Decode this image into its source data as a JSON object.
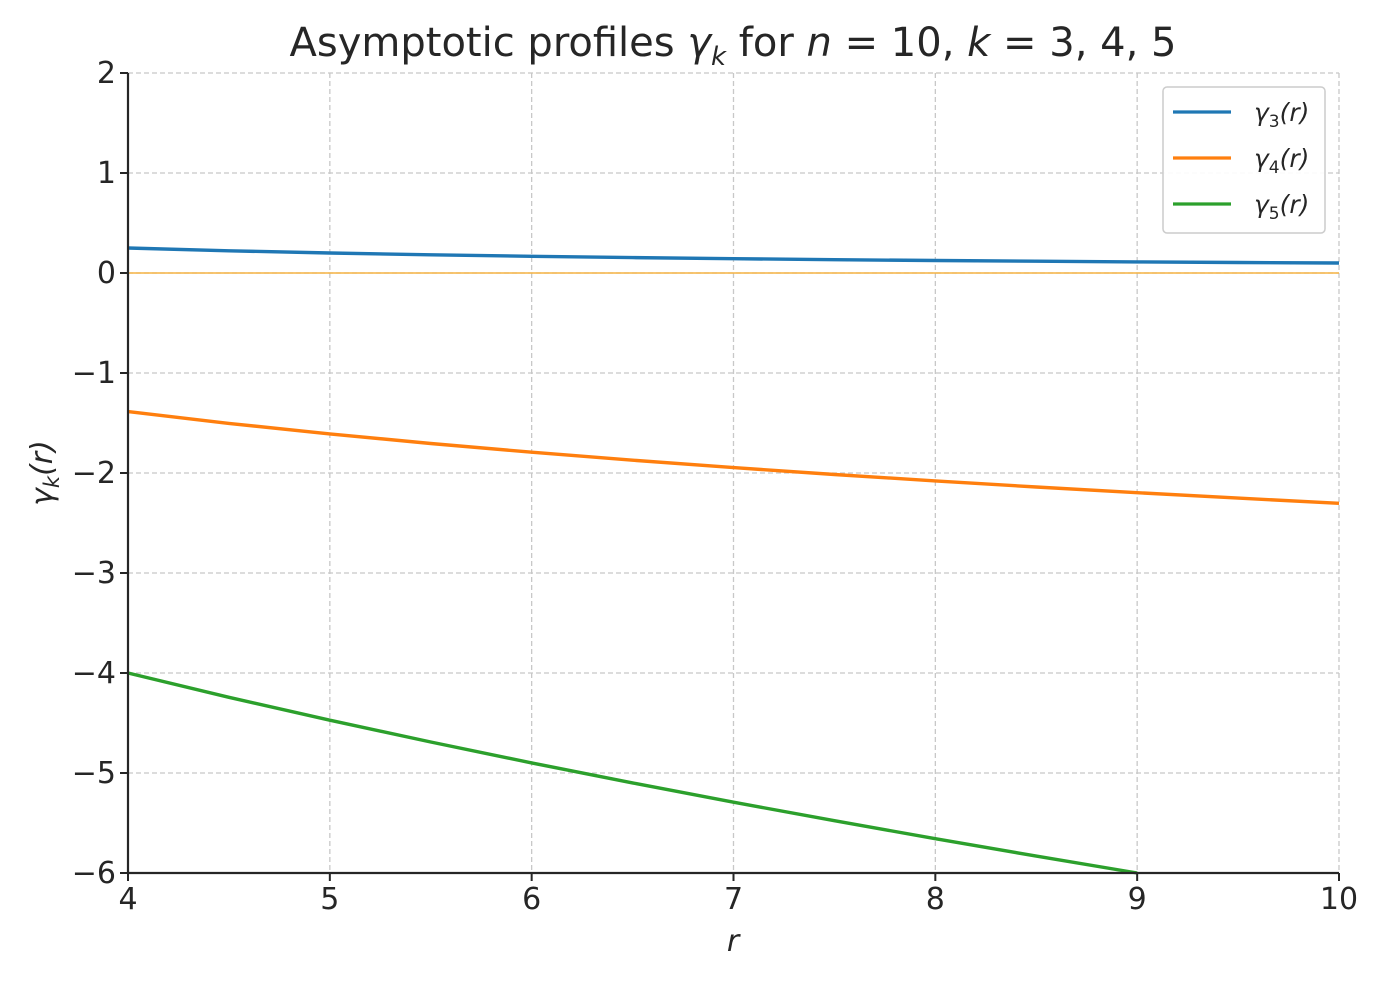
{
  "chart_data": {
    "type": "line",
    "title": {
      "prefix": "Asymptotic profiles ",
      "gamma": "γ",
      "gamma_sub": "k",
      "for": " for ",
      "n_var": "n",
      "n_eq": " = 10, ",
      "k_var": "k",
      "k_eq": " = 3, 4, 5"
    },
    "xlabel": "r",
    "ylabel": {
      "gamma": "γ",
      "sub": "k",
      "arg": "(r)"
    },
    "xlim": [
      4,
      10
    ],
    "ylim": [
      -6,
      2
    ],
    "xticks": [
      4,
      5,
      6,
      7,
      8,
      9,
      10
    ],
    "yticks": [
      -6,
      -5,
      -4,
      -3,
      -2,
      -1,
      0,
      1,
      2
    ],
    "ytick_labels": [
      "−6",
      "−5",
      "−4",
      "−3",
      "−2",
      "−1",
      "0",
      "1",
      "2"
    ],
    "xtick_labels": [
      "4",
      "5",
      "6",
      "7",
      "8",
      "9",
      "10"
    ],
    "grid": true,
    "legend_position": "top-right",
    "zero_line": {
      "y": 0,
      "color": "#f5b342"
    },
    "series": [
      {
        "name": "γ3(r)",
        "legend": {
          "gamma": "γ",
          "sub": "3",
          "arg": "(r)"
        },
        "color": "#1f77b4",
        "x": [
          4.0,
          4.5,
          5.0,
          5.5,
          6.0,
          6.5,
          7.0,
          7.5,
          8.0,
          8.5,
          9.0,
          9.5,
          10.0
        ],
        "y": [
          0.25,
          0.222,
          0.2,
          0.182,
          0.167,
          0.154,
          0.143,
          0.133,
          0.125,
          0.118,
          0.111,
          0.105,
          0.1
        ]
      },
      {
        "name": "γ4(r)",
        "legend": {
          "gamma": "γ",
          "sub": "4",
          "arg": "(r)"
        },
        "color": "#ff7f0e",
        "x": [
          4.0,
          4.5,
          5.0,
          5.5,
          6.0,
          6.5,
          7.0,
          7.5,
          8.0,
          8.5,
          9.0,
          9.5,
          10.0
        ],
        "y": [
          -1.386,
          -1.504,
          -1.609,
          -1.705,
          -1.792,
          -1.872,
          -1.946,
          -2.015,
          -2.079,
          -2.14,
          -2.197,
          -2.251,
          -2.303
        ]
      },
      {
        "name": "γ5(r)",
        "legend": {
          "gamma": "γ",
          "sub": "5",
          "arg": "(r)"
        },
        "color": "#2ca02c",
        "x": [
          4.0,
          4.5,
          5.0,
          5.5,
          6.0,
          6.5,
          7.0,
          7.5,
          8.0,
          8.5,
          9.0
        ],
        "y": [
          -4.0,
          -4.243,
          -4.472,
          -4.69,
          -4.899,
          -5.099,
          -5.292,
          -5.477,
          -5.657,
          -5.831,
          -6.0
        ]
      }
    ]
  }
}
